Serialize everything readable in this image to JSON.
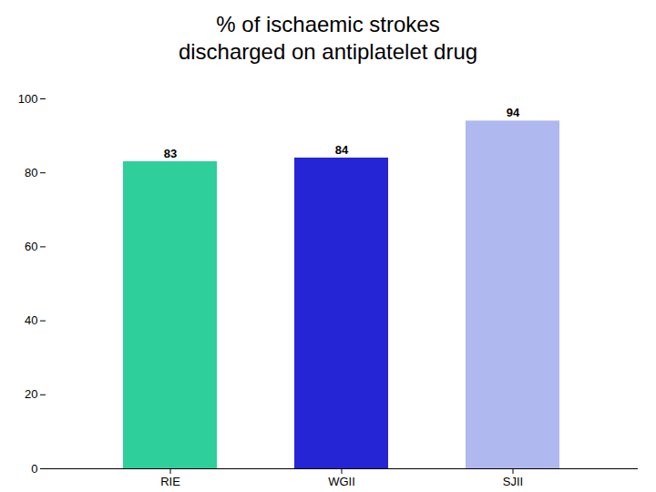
{
  "chart_data": {
    "type": "bar",
    "title": "% of ischaemic strokes\ndischarged on antiplatelet drug",
    "categories": [
      "RIE",
      "WGII",
      "SJII"
    ],
    "values": [
      83,
      84,
      94
    ],
    "colors": [
      "#2ecf9a",
      "#2525d5",
      "#b0b8f0"
    ],
    "ylim": [
      0,
      100
    ],
    "yticks": [
      0,
      20,
      40,
      60,
      80,
      100
    ],
    "data_labels": true,
    "grid": false
  }
}
